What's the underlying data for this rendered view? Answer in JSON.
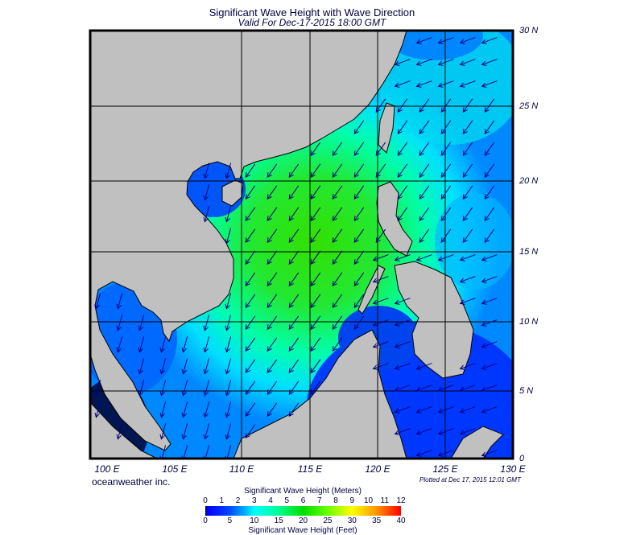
{
  "title": "Significant Wave Height with Wave Direction",
  "subtitle": "Valid For Dec-17-2015 18:00 GMT",
  "lon_labels": [
    "100 E",
    "105 E",
    "110 E",
    "115 E",
    "120 E",
    "125 E",
    "130 E"
  ],
  "lat_labels": [
    "30 N",
    "25 N",
    "20 N",
    "15 N",
    "10 N",
    "5 N",
    "0"
  ],
  "brand": "oceanweather inc.",
  "plotted": "Plotted at Dec 17, 2015 12:01 GMT",
  "colorbar": {
    "meters_title": "Significant Wave Height (Meters)",
    "meters_ticks": [
      "0",
      "1",
      "2",
      "3",
      "4",
      "5",
      "6",
      "7",
      "8",
      "9",
      "10",
      "11",
      "12"
    ],
    "feet_title": "Significant Wave Height (Feet)",
    "feet_ticks": [
      "0",
      "5",
      "10",
      "15",
      "20",
      "25",
      "30",
      "35",
      "40"
    ]
  },
  "colors": {
    "land": "#c0c0c0",
    "arrow": "#000080",
    "low": "#0022ff",
    "mid": "#00ffff",
    "high": "#22dd00"
  }
}
